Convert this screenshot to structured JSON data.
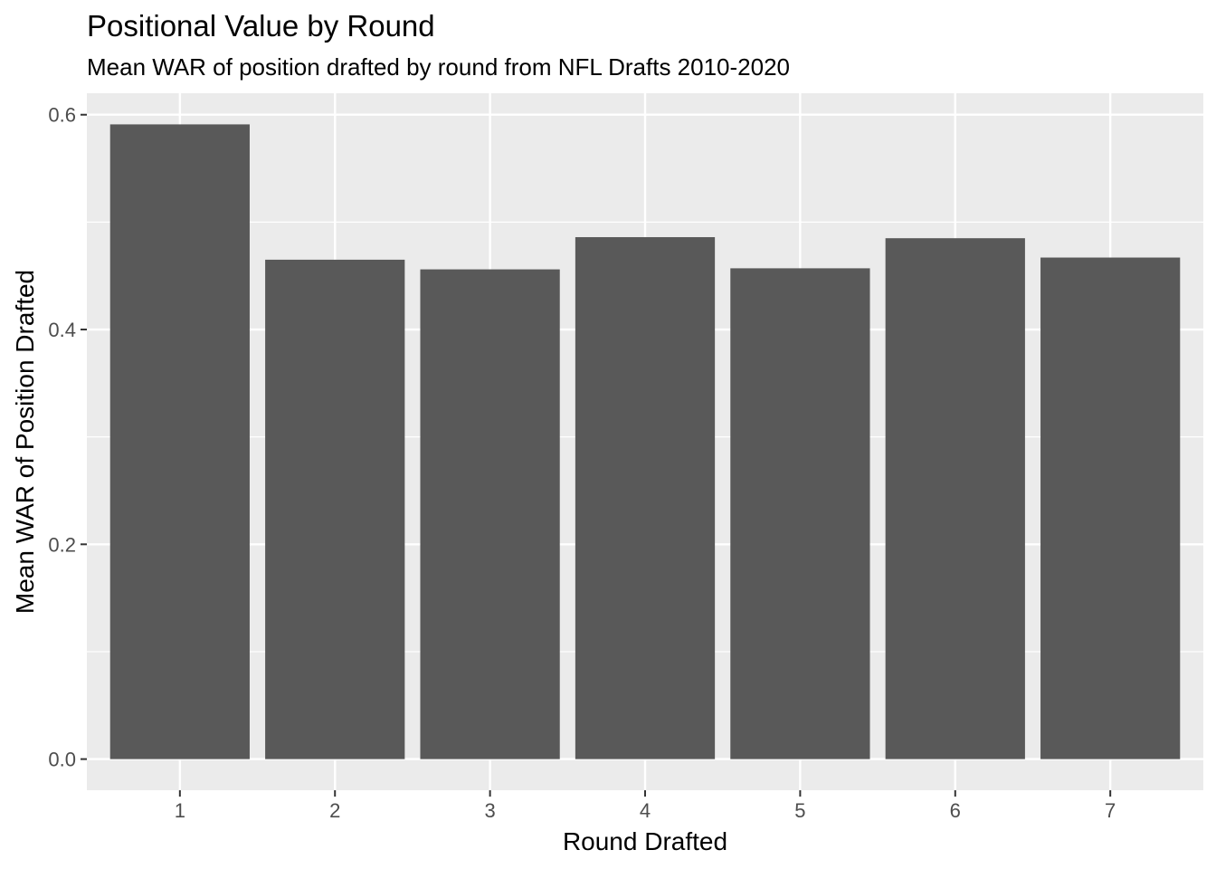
{
  "chart_data": {
    "type": "bar",
    "title": "Positional Value by Round",
    "subtitle": "Mean WAR of position drafted by round from NFL Drafts 2010-2020",
    "xlabel": "Round Drafted",
    "ylabel": "Mean WAR of Position Drafted",
    "categories": [
      "1",
      "2",
      "3",
      "4",
      "5",
      "6",
      "7"
    ],
    "values": [
      0.591,
      0.465,
      0.456,
      0.486,
      0.457,
      0.485,
      0.467
    ],
    "ylim": [
      -0.029,
      0.62
    ],
    "yticks": [
      0.0,
      0.2,
      0.4,
      0.6
    ],
    "ytick_labels": [
      "0.0",
      "0.2",
      "0.4",
      "0.6"
    ],
    "grid": true,
    "colors": {
      "bar": "#595959",
      "panel": "#EBEBEB",
      "grid": "#FFFFFF",
      "tick": "#333333"
    }
  }
}
